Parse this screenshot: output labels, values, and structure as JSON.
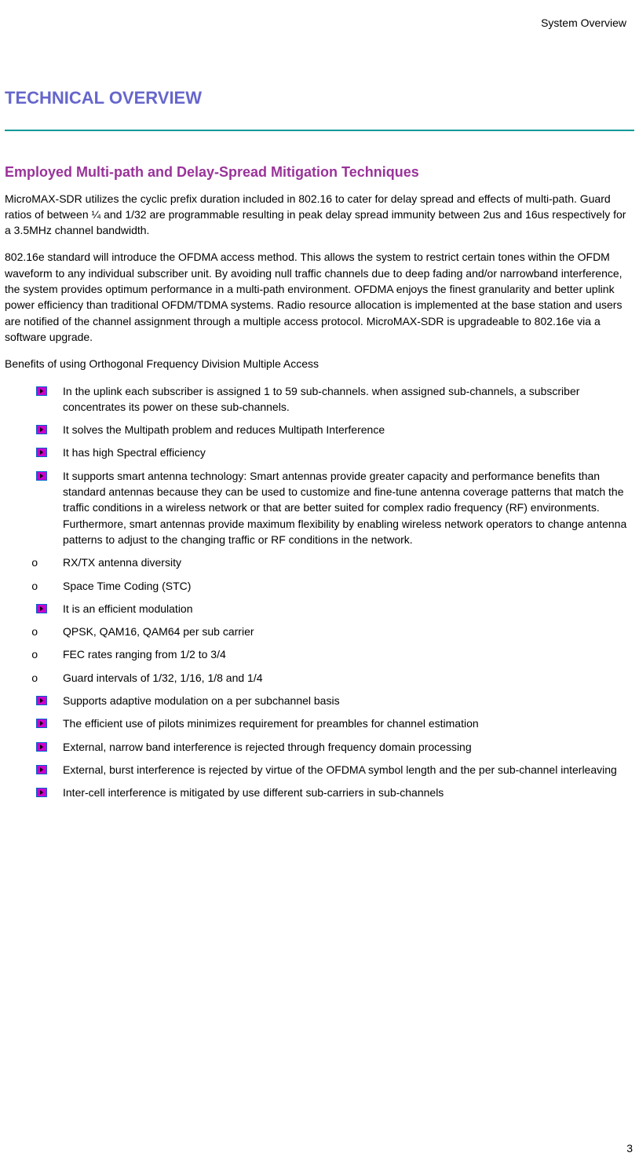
{
  "header": {
    "text": "System Overview"
  },
  "title": "TECHNICAL OVERVIEW",
  "subtitle": "Employed Multi-path and Delay-Spread Mitigation Techniques",
  "paragraphs": [
    "MicroMAX-SDR utilizes the cyclic prefix duration included in 802.16 to cater for delay spread and effects of multi-path. Guard ratios of between ¼ and 1/32 are programmable resulting in peak delay spread immunity between 2us and 16us respectively for a 3.5MHz channel bandwidth.",
    "802.16e standard will introduce the OFDMA access method. This allows the system to restrict certain tones within the OFDM waveform to any individual subscriber unit. By avoiding null traffic channels due to deep fading and/or narrowband interference, the system provides optimum performance in a multi-path environment. OFDMA enjoys the finest granularity and better uplink power efficiency than traditional OFDM/TDMA systems. Radio resource allocation is implemented at the base station and users are notified of the channel assignment through a multiple access protocol. MicroMAX-SDR is upgradeable to 802.16e via a software upgrade.",
    "Benefits of using Orthogonal Frequency Division Multiple Access"
  ],
  "list_items": [
    {
      "type": "arrow",
      "text": "In the uplink each subscriber is assigned 1 to 59 sub-channels. when assigned sub-channels, a subscriber concentrates its power on these sub-channels."
    },
    {
      "type": "arrow",
      "text": "It solves the Multipath problem and reduces Multipath Interference"
    },
    {
      "type": "arrow",
      "text": "It has high Spectral efficiency"
    },
    {
      "type": "arrow",
      "text": "It supports smart antenna technology: Smart antennas provide greater capacity and performance benefits than standard antennas because they can be used to customize and fine-tune antenna coverage patterns that match the traffic conditions in a wireless network or that are better suited for complex radio frequency (RF) environments. Furthermore, smart antennas provide maximum flexibility by enabling wireless network operators to change antenna patterns to adjust to the changing traffic or RF conditions in the network."
    },
    {
      "type": "circle",
      "text": "RX/TX antenna diversity"
    },
    {
      "type": "circle",
      "text": "Space Time Coding (STC)"
    },
    {
      "type": "arrow",
      "text": "It is an efficient modulation"
    },
    {
      "type": "circle",
      "text": "QPSK, QAM16, QAM64 per sub carrier"
    },
    {
      "type": "circle",
      "text": "FEC rates ranging from 1/2 to 3/4"
    },
    {
      "type": "circle",
      "text": "Guard intervals of 1/32, 1/16, 1/8 and 1/4"
    },
    {
      "type": "arrow",
      "text": "Supports adaptive modulation on a per subchannel basis"
    },
    {
      "type": "arrow",
      "text": "The efficient use of pilots minimizes requirement for preambles for channel estimation"
    },
    {
      "type": "arrow",
      "text": "External, narrow band interference is rejected through frequency domain processing"
    },
    {
      "type": "arrow",
      "text": "External, burst interference is rejected by virtue of the OFDMA symbol length and the per sub-channel interleaving"
    },
    {
      "type": "arrow",
      "text": "Inter-cell interference is mitigated by use different sub-carriers in sub-channels"
    }
  ],
  "page_number": "3",
  "colors": {
    "title_color": "#6666cc",
    "subtitle_color": "#993399",
    "divider_color": "#009999",
    "bullet_border": "#0066cc",
    "bullet_fill": "#cc00cc",
    "bullet_arrow": "#000000"
  },
  "circle_glyph": "o"
}
